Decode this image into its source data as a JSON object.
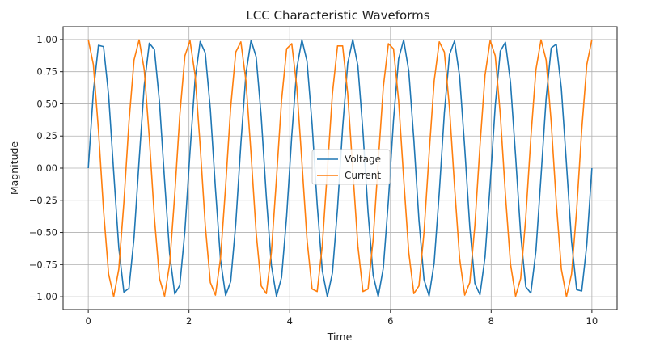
{
  "chart_data": {
    "type": "line",
    "title": "LCC Characteristic Waveforms",
    "xlabel": "Time",
    "ylabel": "Magnitude",
    "xlim": [
      -0.5,
      10.5
    ],
    "ylim": [
      -1.1,
      1.1
    ],
    "xticks": [
      0,
      2,
      4,
      6,
      8,
      10
    ],
    "xtick_labels": [
      "0",
      "2",
      "4",
      "6",
      "8",
      "10"
    ],
    "yticks": [
      1.0,
      0.75,
      0.5,
      0.25,
      0.0,
      -0.25,
      -0.5,
      -0.75,
      -1.0
    ],
    "ytick_labels": [
      "1.00",
      "0.75",
      "0.50",
      "0.25",
      "0.00",
      "−0.25",
      "−0.50",
      "−0.75",
      "−1.00"
    ],
    "grid": true,
    "legend_position": "center",
    "series": [
      {
        "name": "Voltage",
        "color": "#1f77b4",
        "function": "sin",
        "frequency_hz": 1,
        "phase_cycles": 0,
        "x_start": 0,
        "x_end": 10,
        "sample_count": 100
      },
      {
        "name": "Current",
        "color": "#ff7f0e",
        "function": "cos",
        "frequency_hz": 1,
        "phase_cycles": 0,
        "x_start": 0,
        "x_end": 10,
        "sample_count": 100
      }
    ]
  }
}
